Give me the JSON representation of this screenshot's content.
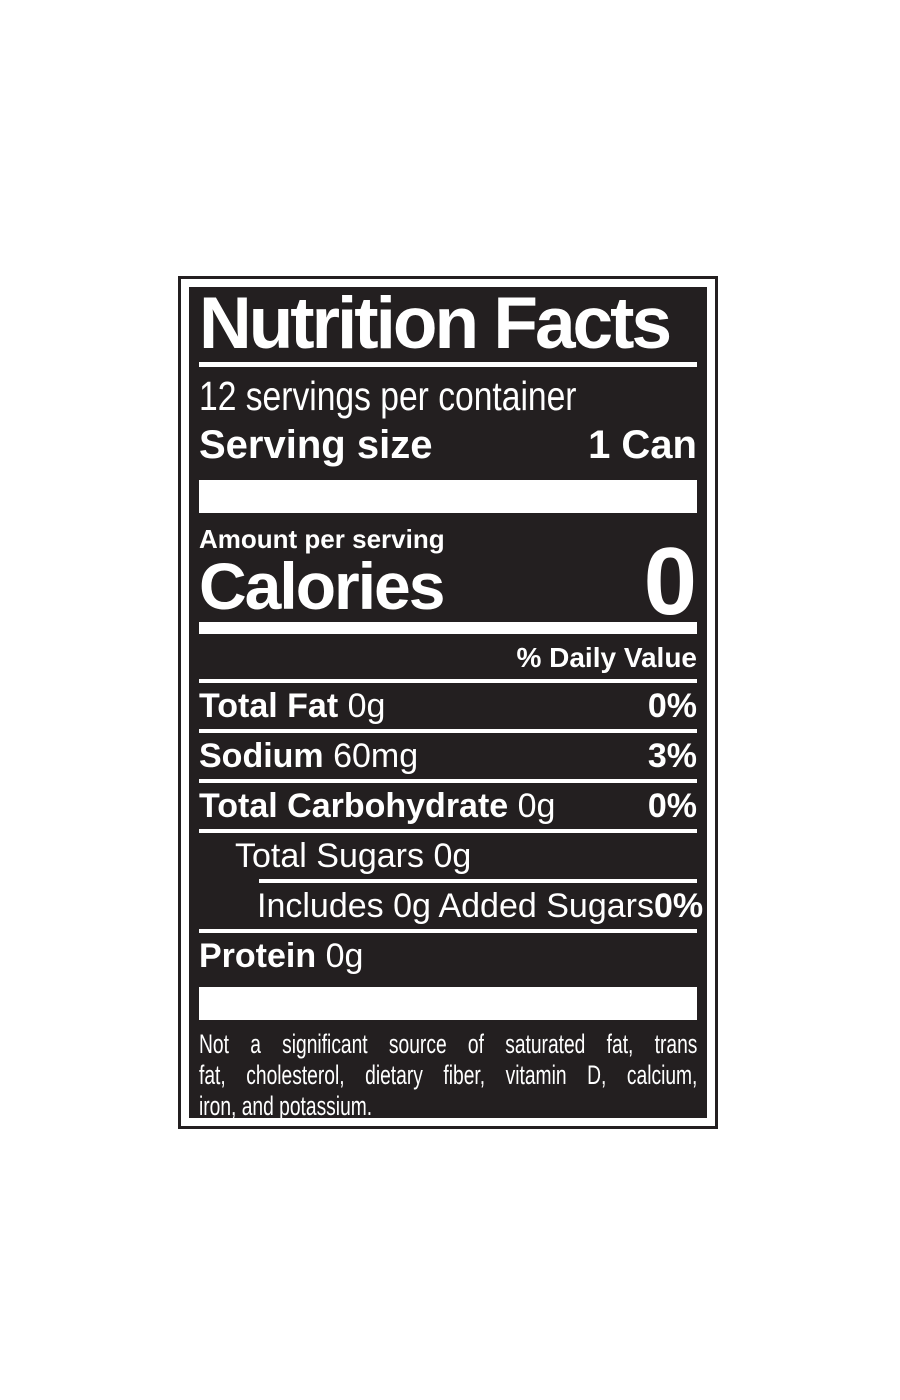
{
  "label": {
    "title": "Nutrition Facts",
    "servings_per_container": "12 servings per container",
    "serving_size_label": "Serving size",
    "serving_size_value": "1 Can",
    "amount_per_serving_label": "Amount per serving",
    "calories_label": "Calories",
    "calories_value": "0",
    "daily_value_header": "% Daily Value",
    "rows": [
      {
        "name": "Total Fat",
        "amount": "0g",
        "dv": "0%",
        "style": "bold",
        "indent": 0,
        "divider_above": "none"
      },
      {
        "name": "Sodium",
        "amount": "60mg",
        "dv": "3%",
        "style": "bold",
        "indent": 0,
        "divider_above": "full"
      },
      {
        "name": "Total Carbohydrate",
        "amount": "0g",
        "dv": "0%",
        "style": "bold",
        "indent": 0,
        "divider_above": "full"
      },
      {
        "name": "Total Sugars",
        "amount": "0g",
        "dv": "",
        "style": "regular",
        "indent": 1,
        "divider_above": "full"
      },
      {
        "name": "Includes 0g Added Sugars",
        "amount": "",
        "dv": "0%",
        "style": "regular",
        "indent": 2,
        "divider_above": "indent"
      },
      {
        "name": "Protein",
        "amount": "0g",
        "dv": "",
        "style": "bold",
        "indent": 0,
        "divider_above": "full"
      }
    ],
    "footnote_lines": [
      "Not a significant source of saturated fat, trans",
      "fat, cholesterol, dietary fiber, vitamin D, calcium,",
      "iron, and potassium."
    ],
    "colors": {
      "label_black": "#231f20",
      "text_white": "#ffffff",
      "page_background": "#ffffff"
    }
  }
}
